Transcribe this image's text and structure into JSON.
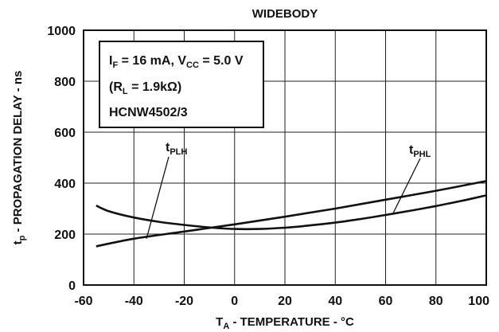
{
  "chart_data": {
    "type": "line",
    "title": "WIDEBODY",
    "xlabel": {
      "main": "T",
      "sub": "A",
      "rest": " - TEMPERATURE - °C"
    },
    "ylabel": {
      "main": "t",
      "sub": "p",
      "rest": " - PROPAGATION DELAY - ns"
    },
    "xlim": [
      -60,
      100
    ],
    "ylim": [
      0,
      1000
    ],
    "x_ticks": [
      -60,
      -40,
      -20,
      0,
      20,
      40,
      60,
      80,
      100
    ],
    "y_ticks": [
      0,
      200,
      400,
      600,
      800,
      1000
    ],
    "grid": true,
    "legend_box": {
      "line1": {
        "a": "I",
        "a_sub": "F",
        "b": " = 16 mA, V",
        "b_sub": "CC",
        "c": " = 5.0 V"
      },
      "line2": {
        "a": "(R",
        "a_sub": "L",
        "b": " = 1.9kΩ)"
      },
      "line3": "HCNW4502/3"
    },
    "series": [
      {
        "name": {
          "main": "t",
          "sub": "PLH"
        },
        "x": [
          -55,
          -40,
          -20,
          0,
          20,
          40,
          60,
          80,
          100
        ],
        "y": [
          152,
          182,
          210,
          238,
          268,
          300,
          335,
          370,
          408
        ]
      },
      {
        "name": {
          "main": "t",
          "sub": "PHL"
        },
        "x": [
          -55,
          -50,
          -40,
          -30,
          -20,
          -10,
          0,
          10,
          20,
          30,
          40,
          50,
          60,
          70,
          80,
          90,
          100
        ],
        "y": [
          312,
          290,
          265,
          248,
          236,
          226,
          220,
          220,
          225,
          234,
          245,
          259,
          275,
          292,
          310,
          330,
          352
        ]
      }
    ],
    "callouts": [
      {
        "series": 0,
        "at": {
          "x": -35,
          "y": 182
        }
      },
      {
        "series": 1,
        "at": {
          "x": 63,
          "y": 282
        }
      }
    ]
  }
}
